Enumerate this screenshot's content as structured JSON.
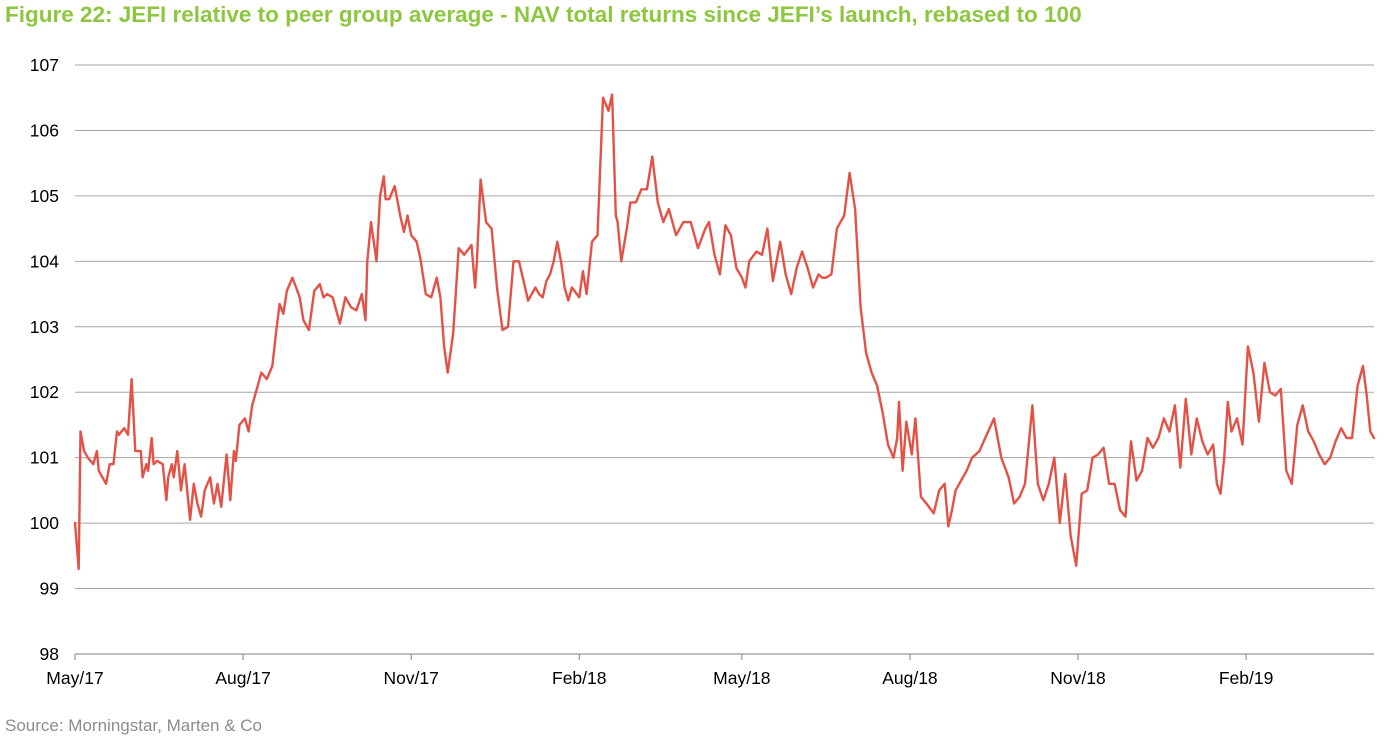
{
  "title": "Figure 22: JEFI relative to peer group average - NAV total returns since JEFI’s launch, rebased to 100",
  "source": "Source: Morningstar, Marten & Co",
  "colors": {
    "line": "#e35246",
    "title": "#8dc63f",
    "grid": "#a6a6a6"
  },
  "chart_data": {
    "type": "line",
    "title": "Figure 22: JEFI relative to peer group average - NAV total returns since JEFI’s launch, rebased to 100",
    "xlabel": "",
    "ylabel": "",
    "ylim": [
      98,
      107
    ],
    "yticks": [
      98,
      99,
      100,
      101,
      102,
      103,
      104,
      105,
      106,
      107
    ],
    "x_tick_labels": [
      "May/17",
      "Aug/17",
      "Nov/17",
      "Feb/18",
      "May/18",
      "Aug/18",
      "Nov/18",
      "Feb/19"
    ],
    "x_tick_dates": [
      "2017-05-01",
      "2017-08-01",
      "2017-11-01",
      "2018-02-01",
      "2018-05-01",
      "2018-08-01",
      "2018-11-01",
      "2019-02-01"
    ],
    "xlim": [
      "2017-05-01",
      "2019-04-12"
    ],
    "grid": "horizontal",
    "legend": "none",
    "series": [
      {
        "x": [
          "2017-05-01",
          "2017-05-03",
          "2017-05-04",
          "2017-05-06",
          "2017-05-08",
          "2017-05-11",
          "2017-05-13",
          "2017-05-14",
          "2017-05-16",
          "2017-05-18",
          "2017-05-20",
          "2017-05-22",
          "2017-05-24",
          "2017-05-25",
          "2017-05-28",
          "2017-05-30",
          "2017-06-01",
          "2017-06-03",
          "2017-06-06",
          "2017-06-07",
          "2017-06-09",
          "2017-06-10",
          "2017-06-12",
          "2017-06-13",
          "2017-06-15",
          "2017-06-18",
          "2017-06-20",
          "2017-06-21",
          "2017-06-23",
          "2017-06-24",
          "2017-06-26",
          "2017-06-28",
          "2017-06-30",
          "2017-07-03",
          "2017-07-05",
          "2017-07-07",
          "2017-07-09",
          "2017-07-11",
          "2017-07-14",
          "2017-07-16",
          "2017-07-18",
          "2017-07-20",
          "2017-07-23",
          "2017-07-25",
          "2017-07-27",
          "2017-07-28",
          "2017-07-30",
          "2017-08-02",
          "2017-08-04",
          "2017-08-06",
          "2017-08-08",
          "2017-08-11",
          "2017-08-14",
          "2017-08-17",
          "2017-08-19",
          "2017-08-21",
          "2017-08-23",
          "2017-08-25",
          "2017-08-28",
          "2017-08-30",
          "2017-09-01",
          "2017-09-03",
          "2017-09-06",
          "2017-09-09",
          "2017-09-12",
          "2017-09-14",
          "2017-09-16",
          "2017-09-19",
          "2017-09-23",
          "2017-09-26",
          "2017-09-29",
          "2017-10-02",
          "2017-10-05",
          "2017-10-07",
          "2017-10-08",
          "2017-10-10",
          "2017-10-13",
          "2017-10-15",
          "2017-10-17",
          "2017-10-18",
          "2017-10-20",
          "2017-10-23",
          "2017-10-26",
          "2017-10-28",
          "2017-10-30",
          "2017-11-01",
          "2017-11-04",
          "2017-11-06",
          "2017-11-09",
          "2017-11-12",
          "2017-11-15",
          "2017-11-17",
          "2017-11-19",
          "2017-11-21",
          "2017-11-24",
          "2017-11-27",
          "2017-11-30",
          "2017-12-04",
          "2017-12-06",
          "2017-12-07",
          "2017-12-09",
          "2017-12-12",
          "2017-12-15",
          "2017-12-18",
          "2017-12-21",
          "2017-12-24",
          "2017-12-27",
          "2017-12-30",
          "2018-01-04",
          "2018-01-08",
          "2018-01-10",
          "2018-01-12",
          "2018-01-14",
          "2018-01-16",
          "2018-01-18",
          "2018-01-20",
          "2018-01-22",
          "2018-01-24",
          "2018-01-26",
          "2018-01-28",
          "2018-02-01",
          "2018-02-03",
          "2018-02-05",
          "2018-02-08",
          "2018-02-11",
          "2018-02-14",
          "2018-02-17",
          "2018-02-19",
          "2018-02-21",
          "2018-02-22",
          "2018-02-24",
          "2018-02-27",
          "2018-03-01",
          "2018-03-04",
          "2018-03-07",
          "2018-03-10",
          "2018-03-13",
          "2018-03-16",
          "2018-03-19",
          "2018-03-22",
          "2018-03-26",
          "2018-03-30",
          "2018-04-03",
          "2018-04-07",
          "2018-04-11",
          "2018-04-13",
          "2018-04-16",
          "2018-04-19",
          "2018-04-22",
          "2018-04-25",
          "2018-04-28",
          "2018-05-01",
          "2018-05-03",
          "2018-05-05",
          "2018-05-09",
          "2018-05-12",
          "2018-05-15",
          "2018-05-18",
          "2018-05-22",
          "2018-05-25",
          "2018-05-28",
          "2018-05-31",
          "2018-06-03",
          "2018-06-06",
          "2018-06-09",
          "2018-06-12",
          "2018-06-14",
          "2018-06-16",
          "2018-06-19",
          "2018-06-22",
          "2018-06-26",
          "2018-06-29",
          "2018-07-02",
          "2018-07-05",
          "2018-07-08",
          "2018-07-11",
          "2018-07-14",
          "2018-07-17",
          "2018-07-20",
          "2018-07-23",
          "2018-07-25",
          "2018-07-26",
          "2018-07-28",
          "2018-07-30",
          "2018-08-02",
          "2018-08-04",
          "2018-08-07",
          "2018-08-10",
          "2018-08-14",
          "2018-08-17",
          "2018-08-20",
          "2018-08-22",
          "2018-08-24",
          "2018-08-26",
          "2018-08-29",
          "2018-09-01",
          "2018-09-04",
          "2018-09-08",
          "2018-09-12",
          "2018-09-16",
          "2018-09-20",
          "2018-09-24",
          "2018-09-27",
          "2018-09-30",
          "2018-10-03",
          "2018-10-07",
          "2018-10-10",
          "2018-10-13",
          "2018-10-16",
          "2018-10-19",
          "2018-10-22",
          "2018-10-25",
          "2018-10-28",
          "2018-10-31",
          "2018-11-03",
          "2018-11-06",
          "2018-11-09",
          "2018-11-12",
          "2018-11-15",
          "2018-11-18",
          "2018-11-21",
          "2018-11-24",
          "2018-11-27",
          "2018-11-30",
          "2018-12-03",
          "2018-12-06",
          "2018-12-09",
          "2018-12-12",
          "2018-12-15",
          "2018-12-18",
          "2018-12-21",
          "2018-12-24",
          "2018-12-27",
          "2018-12-30",
          "2019-01-02",
          "2019-01-05",
          "2019-01-08",
          "2019-01-11",
          "2019-01-14",
          "2019-01-16",
          "2019-01-18",
          "2019-01-20",
          "2019-01-22",
          "2019-01-24",
          "2019-01-27",
          "2019-01-30",
          "2019-02-02",
          "2019-02-05",
          "2019-02-08",
          "2019-02-11",
          "2019-02-14",
          "2019-02-17",
          "2019-02-20",
          "2019-02-23",
          "2019-02-26",
          "2019-03-01",
          "2019-03-04",
          "2019-03-07",
          "2019-03-10",
          "2019-03-13",
          "2019-03-16",
          "2019-03-19",
          "2019-03-22",
          "2019-03-25",
          "2019-03-28",
          "2019-03-31",
          "2019-04-03",
          "2019-04-06",
          "2019-04-08",
          "2019-04-10",
          "2019-04-12"
        ],
        "values": [
          100.0,
          99.3,
          101.4,
          101.1,
          101.0,
          100.9,
          101.1,
          100.8,
          100.7,
          100.6,
          100.9,
          100.9,
          101.4,
          101.35,
          101.45,
          101.35,
          102.2,
          101.1,
          101.1,
          100.7,
          100.9,
          100.8,
          101.3,
          100.9,
          100.95,
          100.9,
          100.35,
          100.7,
          100.9,
          100.7,
          101.1,
          100.5,
          100.9,
          100.05,
          100.6,
          100.3,
          100.1,
          100.5,
          100.7,
          100.3,
          100.6,
          100.25,
          101.05,
          100.35,
          101.1,
          100.95,
          101.5,
          101.6,
          101.4,
          101.8,
          102.0,
          102.3,
          102.2,
          102.4,
          102.9,
          103.35,
          103.2,
          103.55,
          103.75,
          103.6,
          103.45,
          103.1,
          102.95,
          103.55,
          103.65,
          103.45,
          103.5,
          103.45,
          103.05,
          103.45,
          103.3,
          103.25,
          103.5,
          103.1,
          104.0,
          104.6,
          104.0,
          105.0,
          105.3,
          104.95,
          104.95,
          105.15,
          104.7,
          104.45,
          104.7,
          104.4,
          104.3,
          104.05,
          103.5,
          103.45,
          103.75,
          103.45,
          102.7,
          102.3,
          102.9,
          104.2,
          104.1,
          104.25,
          103.6,
          104.0,
          105.25,
          104.6,
          104.5,
          103.6,
          102.95,
          103.0,
          104.0,
          104.0,
          103.4,
          103.6,
          103.5,
          103.45,
          103.7,
          103.8,
          104.0,
          104.3,
          104.0,
          103.6,
          103.4,
          103.6,
          103.45,
          103.85,
          103.5,
          104.3,
          104.4,
          106.5,
          106.3,
          106.55,
          104.7,
          104.6,
          104.0,
          104.5,
          104.9,
          104.9,
          105.1,
          105.1,
          105.6,
          104.9,
          104.6,
          104.8,
          104.4,
          104.6,
          104.6,
          104.2,
          104.5,
          104.6,
          104.1,
          103.8,
          104.55,
          104.4,
          103.9,
          103.75,
          103.6,
          104.0,
          104.15,
          104.1,
          104.5,
          103.7,
          104.3,
          103.8,
          103.5,
          103.9,
          104.15,
          103.9,
          103.6,
          103.8,
          103.75,
          103.75,
          103.8,
          104.5,
          104.7,
          105.35,
          104.8,
          103.3,
          102.6,
          102.3,
          102.1,
          101.7,
          101.2,
          101.0,
          101.3,
          101.85,
          100.8,
          101.55,
          101.05,
          101.6,
          100.4,
          100.3,
          100.15,
          100.5,
          100.6,
          99.95,
          100.2,
          100.5,
          100.65,
          100.8,
          101.0,
          101.1,
          101.35,
          101.6,
          101.0,
          100.7,
          100.3,
          100.4,
          100.6,
          101.8,
          100.6,
          100.35,
          100.6,
          101.0,
          100.0,
          100.75,
          99.8,
          99.35,
          100.45,
          100.5,
          101.0,
          101.05,
          101.15,
          100.6,
          100.6,
          100.2,
          100.1,
          101.25,
          100.65,
          100.8,
          101.3,
          101.15,
          101.3,
          101.6,
          101.4,
          101.8,
          100.85,
          101.9,
          101.05,
          101.6,
          101.25,
          101.05,
          101.2,
          100.6,
          100.45,
          101.0,
          101.85,
          101.4,
          101.6,
          101.2,
          102.7,
          102.3,
          101.55,
          102.45,
          102.0,
          101.95,
          102.05,
          100.8,
          100.6,
          101.5,
          101.8,
          101.4,
          101.25,
          101.05,
          100.9,
          101.0,
          101.25,
          101.45,
          101.3,
          101.3,
          102.1,
          102.4,
          101.95,
          101.4,
          101.3
        ]
      }
    ]
  }
}
